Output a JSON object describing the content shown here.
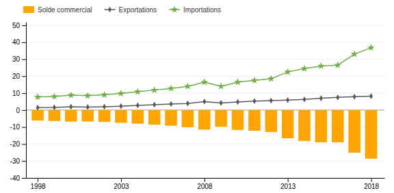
{
  "chart_data": {
    "type": "bar",
    "x": [
      1998,
      1999,
      2000,
      2001,
      2002,
      2003,
      2004,
      2005,
      2006,
      2007,
      2008,
      2009,
      2010,
      2011,
      2012,
      2013,
      2014,
      2015,
      2016,
      2017,
      2018
    ],
    "series": [
      {
        "name": "Solde commercial",
        "type": "bar",
        "color": "#FFA500",
        "values": [
          -6.2,
          -6.4,
          -6.8,
          -6.7,
          -7.0,
          -7.5,
          -8.0,
          -8.6,
          -9.2,
          -10.1,
          -11.5,
          -9.8,
          -11.7,
          -12.2,
          -12.9,
          -16.6,
          -18.2,
          -19.0,
          -19.0,
          -25.1,
          -28.6
        ]
      },
      {
        "name": "Exportations",
        "type": "line",
        "color": "#595959",
        "marker": "diamond",
        "line_style": "solid",
        "values": [
          1.5,
          1.6,
          2.0,
          1.8,
          2.0,
          2.3,
          2.8,
          3.2,
          3.6,
          3.9,
          5.0,
          4.2,
          4.8,
          5.3,
          5.6,
          5.9,
          6.3,
          7.0,
          7.5,
          7.9,
          8.2
        ]
      },
      {
        "name": "Importations",
        "type": "line",
        "color": "#70AD47",
        "marker": "star",
        "line_style": "solid",
        "values": [
          7.7,
          8.0,
          8.8,
          8.5,
          9.0,
          9.8,
          10.8,
          11.8,
          12.8,
          14.0,
          16.5,
          14.0,
          16.5,
          17.5,
          18.5,
          22.5,
          24.5,
          26.0,
          26.5,
          33.0,
          36.8
        ]
      }
    ],
    "xlim": [
      1997.3,
      2018.8
    ],
    "xticks": [
      1998,
      2003,
      2008,
      2013,
      2018
    ],
    "ylim": [
      -40,
      52
    ],
    "yticks": [
      -40,
      -30,
      -20,
      -10,
      0,
      10,
      20,
      30,
      40,
      50
    ],
    "grid": true,
    "legend": "top"
  }
}
